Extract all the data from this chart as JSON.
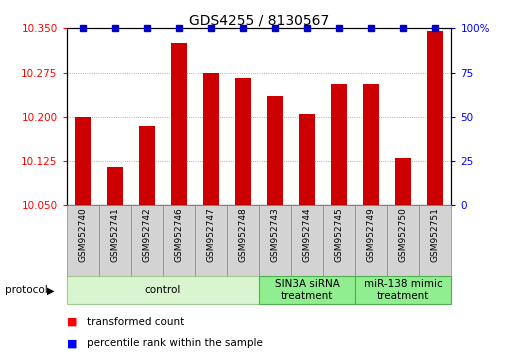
{
  "title": "GDS4255 / 8130567",
  "samples": [
    "GSM952740",
    "GSM952741",
    "GSM952742",
    "GSM952746",
    "GSM952747",
    "GSM952748",
    "GSM952743",
    "GSM952744",
    "GSM952745",
    "GSM952749",
    "GSM952750",
    "GSM952751"
  ],
  "red_values": [
    10.2,
    10.115,
    10.185,
    10.325,
    10.275,
    10.265,
    10.235,
    10.205,
    10.255,
    10.255,
    10.13,
    10.345
  ],
  "blue_values": [
    100,
    100,
    100,
    100,
    100,
    100,
    100,
    100,
    100,
    100,
    100,
    100
  ],
  "ylim_left": [
    10.05,
    10.35
  ],
  "ylim_right": [
    0,
    100
  ],
  "yticks_left": [
    10.05,
    10.125,
    10.2,
    10.275,
    10.35
  ],
  "yticks_right": [
    0,
    25,
    50,
    75,
    100
  ],
  "ytick_labels_right": [
    "0",
    "25",
    "50",
    "75",
    "100%"
  ],
  "groups": [
    {
      "label": "control",
      "start": 0,
      "end": 6
    },
    {
      "label": "SIN3A siRNA\ntreatment",
      "start": 6,
      "end": 9
    },
    {
      "label": "miR-138 mimic\ntreatment",
      "start": 9,
      "end": 12
    }
  ],
  "group_colors": [
    "#d8f5d0",
    "#90ee90",
    "#90ee90"
  ],
  "group_edge_colors": [
    "#a0c890",
    "#50b050",
    "#50b050"
  ],
  "bar_color": "#cc0000",
  "dot_color": "#0000cc",
  "bar_width": 0.5,
  "dot_size": 4,
  "grid_color": "#999999",
  "label_red": "transformed count",
  "label_blue": "percentile rank within the sample",
  "title_fontsize": 10,
  "tick_fontsize": 7.5,
  "sample_fontsize": 6.5,
  "group_fontsize": 7.5,
  "legend_fontsize": 7.5
}
